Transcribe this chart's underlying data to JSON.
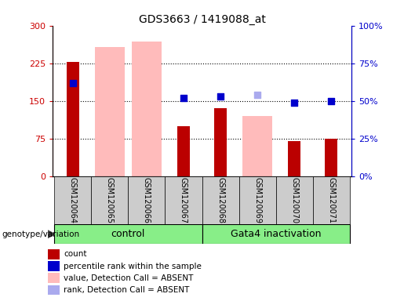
{
  "title": "GDS3663 / 1419088_at",
  "samples": [
    "GSM120064",
    "GSM120065",
    "GSM120066",
    "GSM120067",
    "GSM120068",
    "GSM120069",
    "GSM120070",
    "GSM120071"
  ],
  "count_values": [
    228,
    null,
    null,
    100,
    135,
    null,
    70,
    75
  ],
  "percentile_rank_values": [
    62,
    null,
    null,
    52,
    53,
    null,
    49,
    50
  ],
  "absent_value_bars": [
    null,
    258,
    268,
    null,
    null,
    120,
    null,
    null
  ],
  "absent_rank_markers": [
    null,
    null,
    null,
    null,
    null,
    54,
    null,
    null
  ],
  "left_ylim": [
    0,
    300
  ],
  "right_ylim": [
    0,
    100
  ],
  "left_yticks": [
    0,
    75,
    150,
    225,
    300
  ],
  "right_yticks": [
    0,
    25,
    50,
    75,
    100
  ],
  "left_yticklabels": [
    "0",
    "75",
    "150",
    "225",
    "300"
  ],
  "right_yticklabels": [
    "0%",
    "25%",
    "50%",
    "75%",
    "100%"
  ],
  "left_color": "#cc0000",
  "right_color": "#0000cc",
  "bar_color_count": "#bb0000",
  "bar_color_absent_value": "#ffbbbb",
  "dot_color_percentile": "#0000cc",
  "dot_color_absent_rank": "#aaaaee",
  "control_label": "control",
  "gata4_label": "Gata4 inactivation",
  "group_bg_color": "#88ee88",
  "sample_bg_color": "#cccccc",
  "legend_labels": [
    "count",
    "percentile rank within the sample",
    "value, Detection Call = ABSENT",
    "rank, Detection Call = ABSENT"
  ],
  "legend_colors": [
    "#bb0000",
    "#0000cc",
    "#ffbbbb",
    "#aaaaee"
  ],
  "genotype_label": "genotype/variation",
  "bar_width": 0.5,
  "dot_size": 40
}
